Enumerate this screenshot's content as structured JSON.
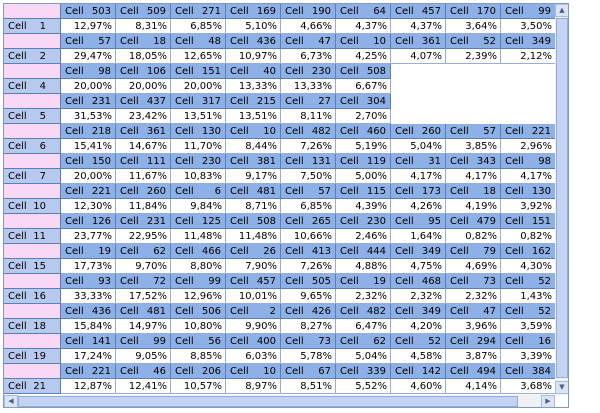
{
  "rows": [
    {
      "header": "Cell 1",
      "cells": [
        "Cell 503",
        "Cell 509",
        "Cell 271",
        "Cell 169",
        "Cell 190",
        "Cell 64",
        "Cell 457",
        "Cell 170",
        "Cell 99"
      ],
      "percents": [
        "12,97%",
        "8,31%",
        "6,85%",
        "5,10%",
        "4,66%",
        "4,37%",
        "4,37%",
        "3,64%",
        "3,50%"
      ]
    },
    {
      "header": "Cell 2",
      "cells": [
        "Cell 57",
        "Cell 18",
        "Cell 48",
        "Cell 436",
        "Cell 47",
        "Cell 10",
        "Cell 361",
        "Cell 52",
        "Cell 349"
      ],
      "percents": [
        "29,47%",
        "18,05%",
        "12,65%",
        "10,97%",
        "6,73%",
        "4,25%",
        "4,07%",
        "2,39%",
        "2,12%"
      ]
    },
    {
      "header": "Cell 4",
      "cells": [
        "Cell 98",
        "Cell 106",
        "Cell 151",
        "Cell 40",
        "Cell 230",
        "Cell 508"
      ],
      "percents": [
        "20,00%",
        "20,00%",
        "20,00%",
        "13,33%",
        "13,33%",
        "6,67%"
      ]
    },
    {
      "header": "Cell 5",
      "cells": [
        "Cell 231",
        "Cell 437",
        "Cell 317",
        "Cell 215",
        "Cell 27",
        "Cell 304"
      ],
      "percents": [
        "31,53%",
        "23,42%",
        "13,51%",
        "13,51%",
        "8,11%",
        "2,70%"
      ]
    },
    {
      "header": "Cell 6",
      "cells": [
        "Cell 218",
        "Cell 361",
        "Cell 130",
        "Cell 10",
        "Cell 482",
        "Cell 460",
        "Cell 260",
        "Cell 57",
        "Cell 221"
      ],
      "percents": [
        "15,41%",
        "14,67%",
        "11,70%",
        "8,44%",
        "7,26%",
        "5,19%",
        "5,04%",
        "3,85%",
        "2,96%"
      ]
    },
    {
      "header": "Cell 7",
      "cells": [
        "Cell 150",
        "Cell 111",
        "Cell 230",
        "Cell 381",
        "Cell 131",
        "Cell 119",
        "Cell 31",
        "Cell 343",
        "Cell 98"
      ],
      "percents": [
        "20,00%",
        "11,67%",
        "10,83%",
        "9,17%",
        "7,50%",
        "5,00%",
        "4,17%",
        "4,17%",
        "4,17%"
      ]
    },
    {
      "header": "Cell 10",
      "cells": [
        "Cell 221",
        "Cell 260",
        "Cell 6",
        "Cell 481",
        "Cell 57",
        "Cell 115",
        "Cell 173",
        "Cell 18",
        "Cell 130"
      ],
      "percents": [
        "12,30%",
        "11,84%",
        "9,84%",
        "8,71%",
        "6,85%",
        "4,39%",
        "4,26%",
        "4,19%",
        "3,92%"
      ]
    },
    {
      "header": "Cell 11",
      "cells": [
        "Cell 126",
        "Cell 231",
        "Cell 125",
        "Cell 508",
        "Cell 265",
        "Cell 230",
        "Cell 95",
        "Cell 479",
        "Cell 151"
      ],
      "percents": [
        "23,77%",
        "22,95%",
        "11,48%",
        "11,48%",
        "10,66%",
        "2,46%",
        "1,64%",
        "0,82%",
        "0,82%"
      ]
    },
    {
      "header": "Cell 15",
      "cells": [
        "Cell 19",
        "Cell 62",
        "Cell 466",
        "Cell 26",
        "Cell 413",
        "Cell 444",
        "Cell 349",
        "Cell 79",
        "Cell 162"
      ],
      "percents": [
        "17,73%",
        "9,70%",
        "8,80%",
        "7,90%",
        "7,26%",
        "4,88%",
        "4,75%",
        "4,69%",
        "4,30%"
      ]
    },
    {
      "header": "Cell 16",
      "cells": [
        "Cell 93",
        "Cell 72",
        "Cell 99",
        "Cell 457",
        "Cell 505",
        "Cell 19",
        "Cell 468",
        "Cell 73",
        "Cell 52"
      ],
      "percents": [
        "33,33%",
        "17,52%",
        "12,96%",
        "10,01%",
        "9,65%",
        "2,32%",
        "2,32%",
        "2,32%",
        "1,43%"
      ]
    },
    {
      "header": "Cell 18",
      "cells": [
        "Cell 436",
        "Cell 481",
        "Cell 506",
        "Cell 2",
        "Cell 426",
        "Cell 482",
        "Cell 349",
        "Cell 47",
        "Cell 52"
      ],
      "percents": [
        "15,84%",
        "14,97%",
        "10,80%",
        "9,90%",
        "8,27%",
        "6,47%",
        "4,20%",
        "3,96%",
        "3,59%"
      ]
    },
    {
      "header": "Cell 19",
      "cells": [
        "Cell 141",
        "Cell 99",
        "Cell 56",
        "Cell 400",
        "Cell 73",
        "Cell 62",
        "Cell 52",
        "Cell 294",
        "Cell 16"
      ],
      "percents": [
        "17,24%",
        "9,05%",
        "8,85%",
        "6,03%",
        "5,78%",
        "5,04%",
        "4,58%",
        "3,87%",
        "3,39%"
      ]
    },
    {
      "header": "Cell 21",
      "cells": [
        "Cell 221",
        "Cell 46",
        "Cell 206",
        "Cell 10",
        "Cell 67",
        "Cell 339",
        "Cell 142",
        "Cell 494",
        "Cell 384"
      ],
      "percents": [
        "12,87%",
        "12,41%",
        "10,57%",
        "8,97%",
        "8,51%",
        "5,52%",
        "4,60%",
        "4,14%",
        "3,68%"
      ]
    }
  ]
}
